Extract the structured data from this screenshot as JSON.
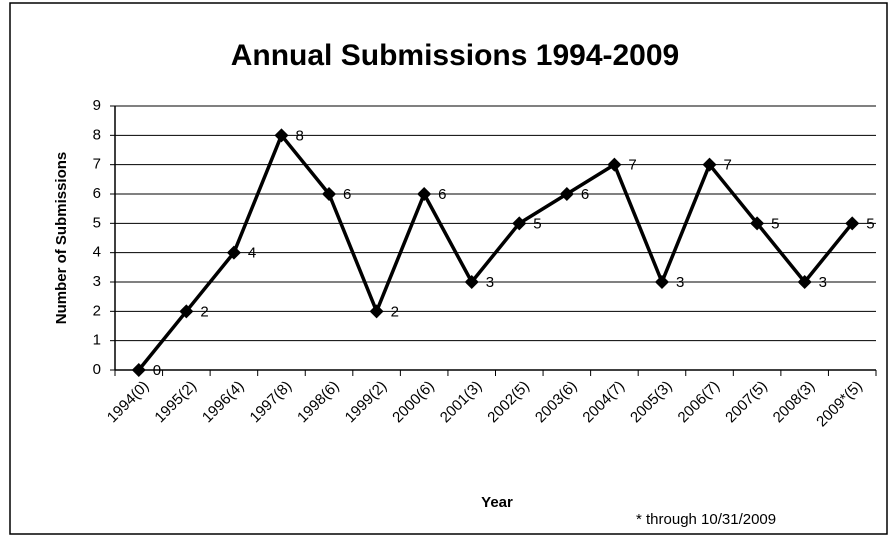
{
  "chart_data": {
    "type": "line",
    "title": "Annual Submissions 1994-2009",
    "x_label": "Year",
    "y_label": "Number of Submissions",
    "annotation": "* through 10/31/2009",
    "categories": [
      "1994(0)",
      "1995(2)",
      "1996(4)",
      "1997(8)",
      "1998(6)",
      "1999(2)",
      "2000(6)",
      "2001(3)",
      "2002(5)",
      "2003(6)",
      "2004(7)",
      "2005(3)",
      "2006(7)",
      "2007(5)",
      "2008(3)",
      "2009*(5)"
    ],
    "values": [
      0,
      2,
      4,
      8,
      6,
      2,
      6,
      3,
      5,
      6,
      7,
      3,
      7,
      5,
      3,
      5
    ],
    "color": "#000000",
    "ylim": [
      0,
      9
    ],
    "yticks": [
      0,
      1,
      2,
      3,
      4,
      5,
      6,
      7,
      8,
      9
    ],
    "grid": true
  }
}
